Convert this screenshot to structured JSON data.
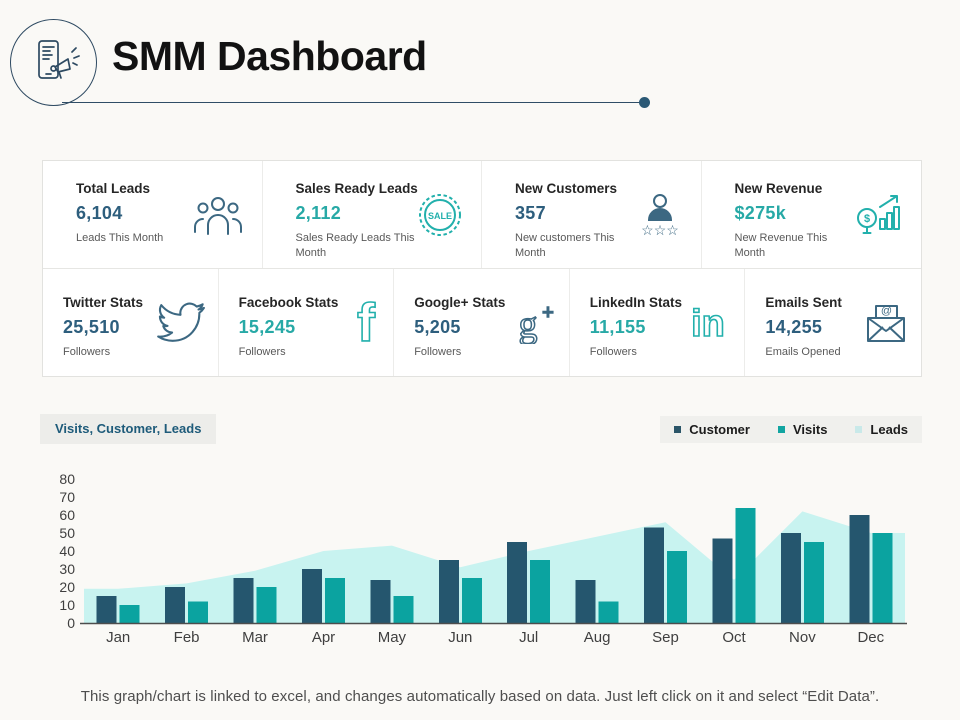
{
  "slide": {
    "title": "SMM Dashboard"
  },
  "stats": {
    "row1": [
      {
        "title": "Total Leads",
        "value": "6,104",
        "value_color": "dark",
        "sub": "Leads This Month",
        "icon": "people-icon",
        "tone": "slate"
      },
      {
        "title": "Sales Ready Leads",
        "value": "2,112",
        "value_color": "teal",
        "sub": "Sales Ready Leads This Month",
        "icon": "sale-badge-icon",
        "tone": "teal"
      },
      {
        "title": "New Customers",
        "value": "357",
        "value_color": "dark",
        "sub": "New customers This Month",
        "icon": "person-rating-icon",
        "tone": "slate"
      },
      {
        "title": "New Revenue",
        "value": "$275k",
        "value_color": "teal",
        "sub": "New Revenue This Month",
        "icon": "revenue-growth-icon",
        "tone": "teal"
      }
    ],
    "row2": [
      {
        "title": "Twitter Stats",
        "value": "25,510",
        "value_color": "dark",
        "sub": "Followers",
        "icon": "twitter-icon",
        "tone": "slate"
      },
      {
        "title": "Facebook Stats",
        "value": "15,245",
        "value_color": "teal",
        "sub": "Followers",
        "icon": "facebook-icon",
        "tone": "teal"
      },
      {
        "title": "Google+ Stats",
        "value": "5,205",
        "value_color": "dark",
        "sub": "Followers",
        "icon": "google-plus-icon",
        "tone": "slate"
      },
      {
        "title": "LinkedIn Stats",
        "value": "11,155",
        "value_color": "teal",
        "sub": "Followers",
        "icon": "linkedin-icon",
        "tone": "teal"
      },
      {
        "title": "Emails Sent",
        "value": "14,255",
        "value_color": "dark",
        "sub": "Emails Opened",
        "icon": "email-icon",
        "tone": "slate"
      }
    ]
  },
  "chart_header": {
    "label_box": "Visits, Customer, Leads",
    "legend": [
      {
        "label": "Customer",
        "color": "#2b5568"
      },
      {
        "label": "Visits",
        "color": "#12a5a1"
      },
      {
        "label": "Leads",
        "color": "#c9e9e9"
      }
    ]
  },
  "chart_data": {
    "type": "bar",
    "title": "Visits, Customer, Leads",
    "categories": [
      "Jan",
      "Feb",
      "Mar",
      "Apr",
      "May",
      "Jun",
      "Jul",
      "Aug",
      "Sep",
      "Oct",
      "Nov",
      "Dec"
    ],
    "series": [
      {
        "name": "Customer",
        "kind": "bar",
        "color": "#25566e",
        "values": [
          15,
          20,
          25,
          30,
          24,
          35,
          45,
          24,
          53,
          47,
          50,
          60
        ]
      },
      {
        "name": "Visits",
        "kind": "bar",
        "color": "#0ba3a0",
        "values": [
          10,
          12,
          20,
          25,
          15,
          25,
          35,
          12,
          40,
          64,
          45,
          50
        ]
      },
      {
        "name": "Leads",
        "kind": "area",
        "color": "#c8f3f0",
        "values": [
          19,
          22,
          29,
          40,
          43,
          31,
          40,
          48,
          56,
          24,
          62,
          50
        ]
      }
    ],
    "xlabel": "",
    "ylabel": "",
    "ylim": [
      0,
      80
    ],
    "yticks": [
      0,
      10,
      20,
      30,
      40,
      50,
      60,
      70,
      80
    ],
    "grid": false,
    "legend_position": "top-right"
  },
  "footer": {
    "caption": "This graph/chart is linked to excel, and changes automatically based on data. Just left click on it and select “Edit Data”."
  },
  "colors": {
    "value_dark": "#2d5e7d",
    "value_teal": "#27a9a6",
    "icon_slate": "#3c6882",
    "icon_teal": "#22b0ac",
    "header_line": "#2f4d66",
    "axis_text": "#3f3f3f"
  }
}
